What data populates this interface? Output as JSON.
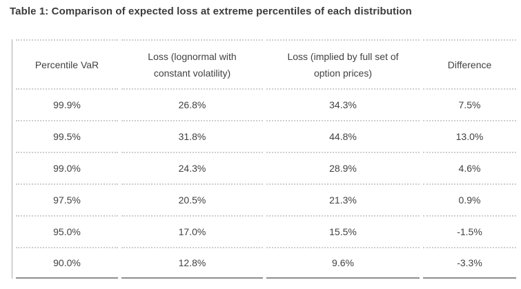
{
  "title": "Table 1: Comparison of expected loss at extreme percentiles of each distribution",
  "table": {
    "columns": [
      "Percentile VaR",
      "Loss (lognormal with constant volatility)",
      "Loss (implied by full set of option prices)",
      "Difference"
    ],
    "rows": [
      [
        "99.9%",
        "26.8%",
        "34.3%",
        "7.5%"
      ],
      [
        "99.5%",
        "31.8%",
        "44.8%",
        "13.0%"
      ],
      [
        "99.0%",
        "24.3%",
        "28.9%",
        "4.6%"
      ],
      [
        "97.5%",
        "20.5%",
        "21.3%",
        "0.9%"
      ],
      [
        "95.0%",
        "17.0%",
        "15.5%",
        "-1.5%"
      ],
      [
        "90.0%",
        "12.8%",
        "9.6%",
        "-3.3%"
      ]
    ]
  },
  "colors": {
    "title_text": "#3c3c3c",
    "cell_text": "#414141",
    "dotted_border": "#cdcdcd",
    "bottom_border": "#8d8d8d",
    "left_border": "#aaaaaa",
    "background": "#ffffff"
  },
  "chart_data": {
    "type": "table",
    "title": "Table 1: Comparison of expected loss at extreme percentiles of each distribution",
    "columns": [
      "Percentile VaR",
      "Loss (lognormal with constant volatility)",
      "Loss (implied by full set of option prices)",
      "Difference"
    ],
    "categories": [
      "99.9%",
      "99.5%",
      "99.0%",
      "97.5%",
      "95.0%",
      "90.0%"
    ],
    "series": [
      {
        "name": "Loss (lognormal with constant volatility)",
        "values": [
          26.8,
          31.8,
          24.3,
          20.5,
          17.0,
          12.8
        ]
      },
      {
        "name": "Loss (implied by full set of option prices)",
        "values": [
          34.3,
          44.8,
          28.9,
          21.3,
          15.5,
          9.6
        ]
      },
      {
        "name": "Difference",
        "values": [
          7.5,
          13.0,
          4.6,
          0.9,
          -1.5,
          -3.3
        ]
      }
    ],
    "unit": "%",
    "layout_hints": {
      "grid": "dotted-row-separators",
      "alignment": "center"
    }
  }
}
